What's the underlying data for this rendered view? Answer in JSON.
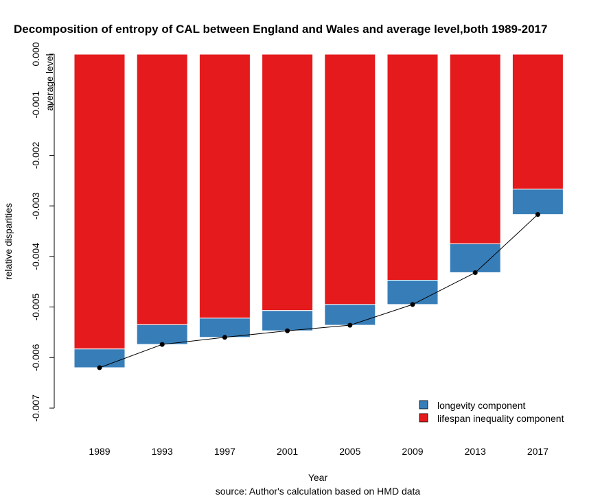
{
  "chart_data": {
    "type": "bar",
    "title": "Decomposition of entropy of CAL between England and Wales and average level,both 1989-2017",
    "xlabel": "Year",
    "ylabel": "relative disparities",
    "caption": "source: Author's calculation based on HMD data",
    "axis_annotation": "average level",
    "categories": [
      "1989",
      "1993",
      "1997",
      "2001",
      "2005",
      "2009",
      "2013",
      "2017"
    ],
    "ylim": [
      -0.007,
      0.0
    ],
    "yticks": [
      0.0,
      -0.001,
      -0.002,
      -0.003,
      -0.004,
      -0.005,
      -0.006,
      -0.007
    ],
    "ytick_labels": [
      "0.000",
      "-0.001",
      "-0.002",
      "-0.003",
      "-0.004",
      "-0.005",
      "-0.006",
      "-0.007"
    ],
    "series": [
      {
        "name": "lifespan inequality component",
        "color": "#E41A1C",
        "values": [
          -0.00583,
          -0.00535,
          -0.00522,
          -0.00507,
          -0.00495,
          -0.00447,
          -0.00375,
          -0.00267
        ]
      },
      {
        "name": "longevity component",
        "color": "#377EB8",
        "values": [
          -0.00037,
          -0.00039,
          -0.00038,
          -0.0004,
          -0.00041,
          -0.00048,
          -0.00057,
          -0.0005
        ]
      }
    ],
    "total_line": {
      "values": [
        -0.0062,
        -0.00574,
        -0.0056,
        -0.00547,
        -0.00536,
        -0.00495,
        -0.00432,
        -0.00317
      ]
    },
    "legend": {
      "placement": "bottom-right",
      "entries": [
        {
          "label": "longevity component",
          "color": "#377EB8"
        },
        {
          "label": "lifespan inequality component",
          "color": "#E41A1C"
        }
      ]
    },
    "grid": false
  }
}
